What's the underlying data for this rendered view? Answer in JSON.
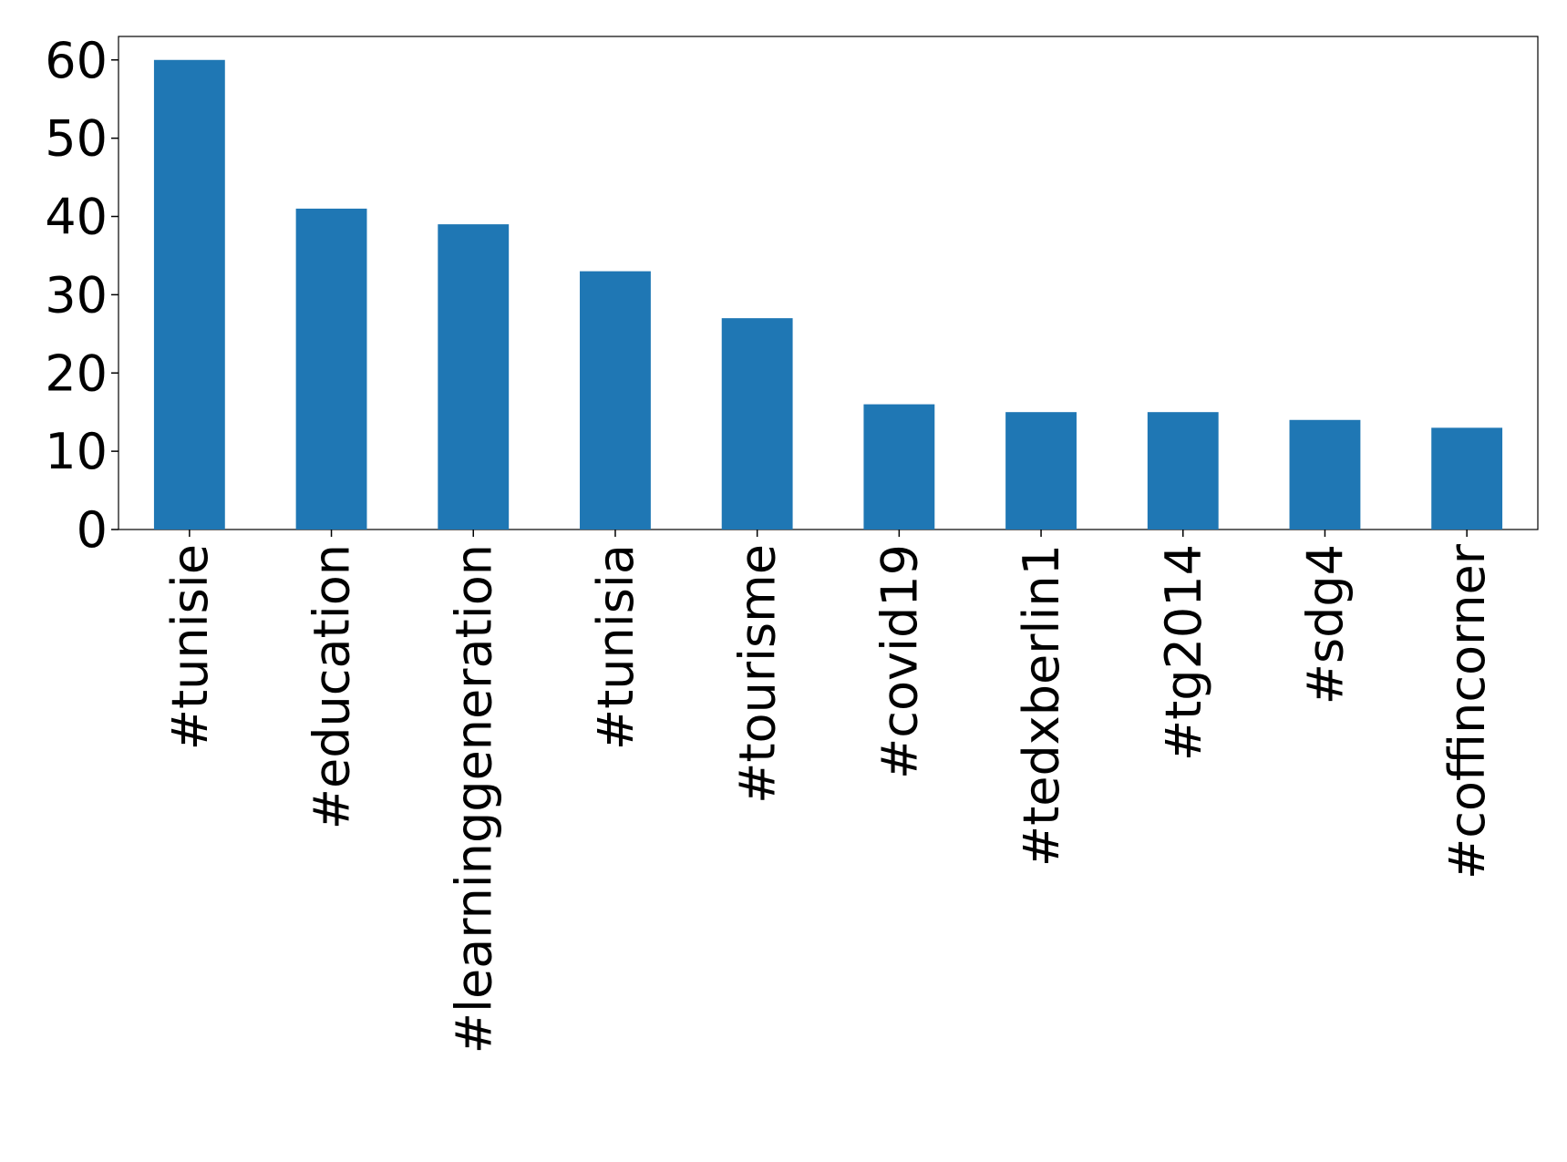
{
  "chart_data": {
    "type": "bar",
    "categories": [
      "#tunisie",
      "#education",
      "#learninggeneration",
      "#tunisia",
      "#tourisme",
      "#covid19",
      "#tedxberlin1",
      "#tg2014",
      "#sdg4",
      "#coffincorner"
    ],
    "values": [
      60,
      41,
      39,
      33,
      27,
      16,
      15,
      15,
      14,
      13
    ],
    "color": "#1f77b4",
    "ylim": [
      0,
      63
    ],
    "yticks": [
      0,
      10,
      20,
      30,
      40,
      50,
      60
    ],
    "grid": false
  }
}
